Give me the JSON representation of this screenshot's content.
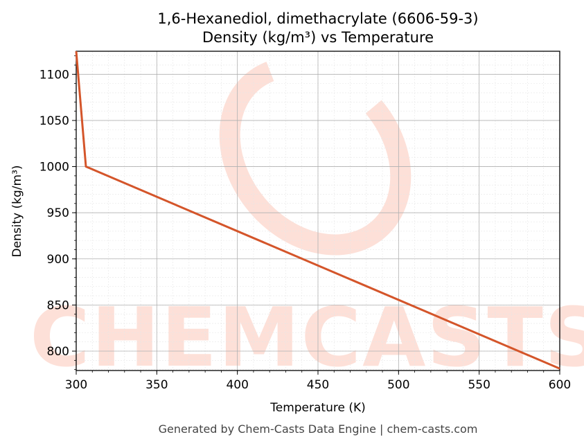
{
  "chart_data": {
    "type": "line",
    "title_line1": "1,6-Hexanediol, dimethacrylate (6606-59-3)",
    "title_line2": "Density (kg/m³) vs Temperature",
    "xlabel": "Temperature (K)",
    "ylabel": "Density (kg/m³)",
    "xlim": [
      300,
      600
    ],
    "ylim": [
      779,
      1125
    ],
    "x_ticks": [
      300,
      350,
      400,
      450,
      500,
      550,
      600
    ],
    "y_ticks": [
      800,
      850,
      900,
      950,
      1000,
      1050,
      1100
    ],
    "grid": true,
    "series": [
      {
        "color": "#d4552a",
        "x": [
          300,
          306,
          600
        ],
        "y": [
          1125,
          1000,
          781
        ]
      }
    ]
  },
  "watermark": {
    "text": "CHEMCASTS",
    "color": "#fde0d8"
  },
  "footer": "Generated by Chem-Casts Data Engine | chem-casts.com"
}
